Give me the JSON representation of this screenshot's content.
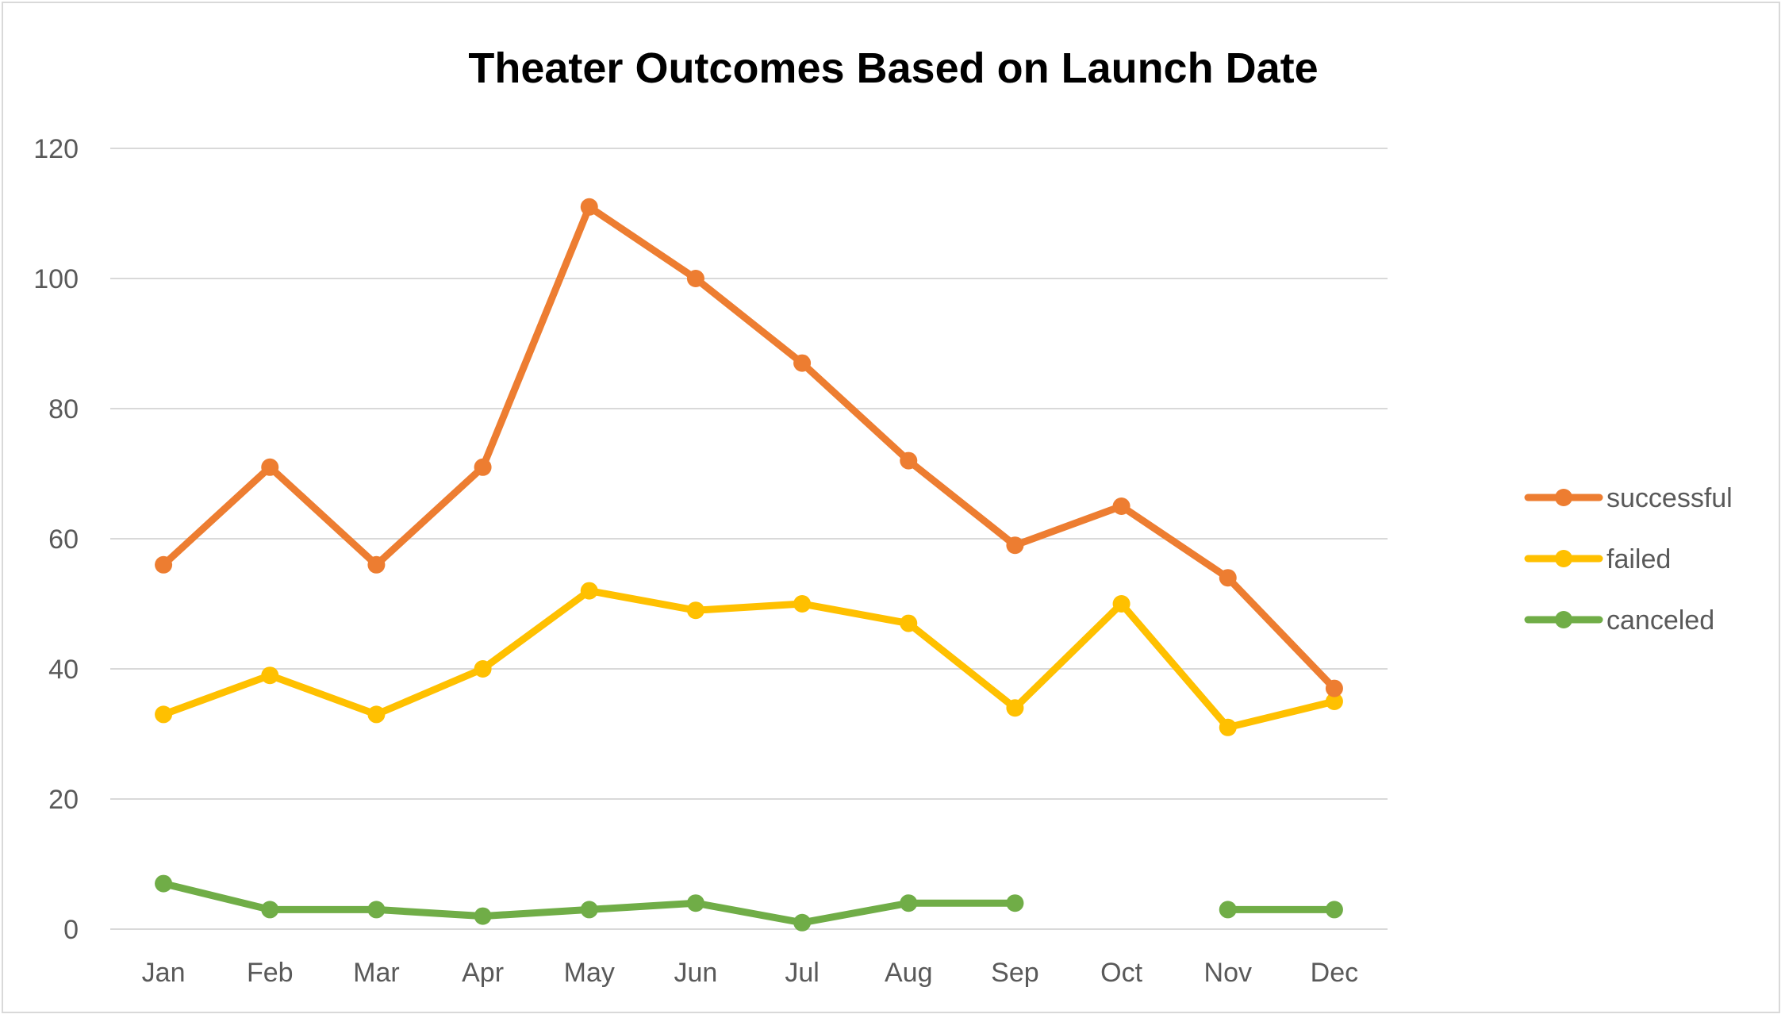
{
  "chart_data": {
    "type": "line",
    "title": "Theater Outcomes Based on Launch Date",
    "xlabel": "",
    "ylabel": "",
    "ylim": [
      0,
      120
    ],
    "yticks": [
      0,
      20,
      40,
      60,
      80,
      100,
      120
    ],
    "categories": [
      "Jan",
      "Feb",
      "Mar",
      "Apr",
      "May",
      "Jun",
      "Jul",
      "Aug",
      "Sep",
      "Oct",
      "Nov",
      "Dec"
    ],
    "grid": true,
    "legend_position": "right",
    "series": [
      {
        "name": "successful",
        "color": "#ED7D31",
        "values": [
          56,
          71,
          56,
          71,
          111,
          100,
          87,
          72,
          59,
          65,
          54,
          37
        ]
      },
      {
        "name": "failed",
        "color": "#FFC000",
        "values": [
          33,
          39,
          33,
          40,
          52,
          49,
          50,
          47,
          34,
          50,
          31,
          35
        ]
      },
      {
        "name": "canceled",
        "color": "#70AD47",
        "values": [
          7,
          3,
          3,
          2,
          3,
          4,
          1,
          4,
          4,
          null,
          3,
          3
        ]
      }
    ]
  }
}
